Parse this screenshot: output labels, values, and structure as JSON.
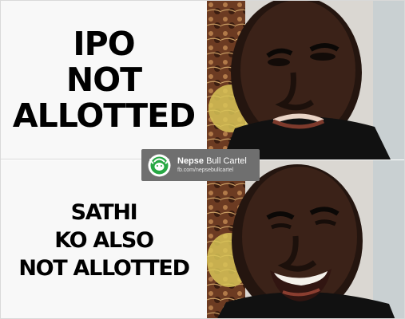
{
  "panels": {
    "top": {
      "lines": [
        "IPO",
        "NOT",
        "ALLOTTED"
      ],
      "expression": "disappointed"
    },
    "bottom": {
      "lines": [
        "SATHI",
        "KO ALSO",
        "NOT ALLOTTED"
      ],
      "expression": "laughing"
    }
  },
  "watermark": {
    "brand_bold": "Nepse",
    "brand_regular": "Bull Cartel",
    "url": "fb.com/nepsebullcartel",
    "logo_icon": "bull-icon"
  },
  "colors": {
    "text": "#000000",
    "background": "#f8f8f8",
    "watermark_bg": "#6f6f6f",
    "logo_green": "#27a844"
  }
}
